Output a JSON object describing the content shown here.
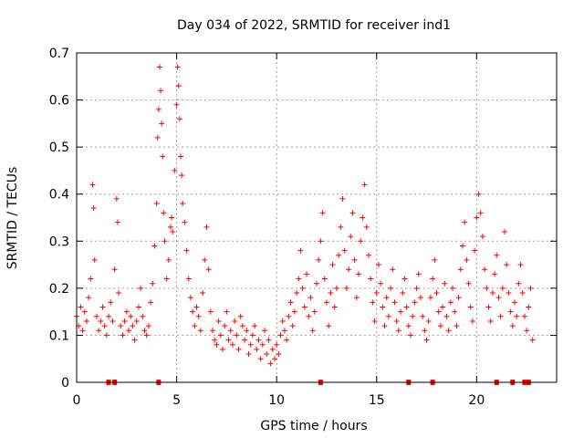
{
  "chart_data": {
    "type": "scatter",
    "title": "Day 034 of 2022, SRMTID for receiver ind1",
    "xlabel": "GPS time / hours",
    "ylabel": "SRMTID / TECUs",
    "xlim": [
      0,
      24
    ],
    "ylim": [
      0,
      0.7
    ],
    "xticks": [
      0,
      5,
      10,
      15,
      20
    ],
    "xtick_labels": [
      "0",
      "5",
      "10",
      "15",
      "20"
    ],
    "yticks": [
      0,
      0.1,
      0.2,
      0.3,
      0.4,
      0.5,
      0.6,
      0.7
    ],
    "ytick_labels": [
      "0",
      "0.1",
      "0.2",
      "0.3",
      "0.4",
      "0.5",
      "0.6",
      "0.7"
    ],
    "grid": true,
    "marker": "+",
    "color": "#ff0000",
    "series": [
      {
        "name": "SRMTID",
        "x": [
          0.0,
          0.1,
          0.2,
          0.3,
          0.4,
          0.5,
          0.6,
          0.7,
          0.8,
          0.85,
          0.9,
          1.0,
          1.1,
          1.2,
          1.3,
          1.4,
          1.5,
          1.6,
          1.7,
          1.8,
          1.9,
          2.0,
          2.05,
          2.1,
          2.2,
          2.3,
          2.4,
          2.5,
          2.6,
          2.7,
          2.8,
          2.9,
          3.0,
          3.1,
          3.2,
          3.3,
          3.4,
          3.5,
          3.6,
          3.7,
          3.8,
          3.9,
          4.0,
          4.05,
          4.1,
          4.15,
          4.2,
          4.25,
          4.3,
          4.35,
          4.4,
          4.5,
          4.6,
          4.7,
          4.75,
          4.8,
          4.9,
          5.0,
          5.05,
          5.1,
          5.15,
          5.2,
          5.25,
          5.3,
          5.4,
          5.5,
          5.6,
          5.7,
          5.8,
          5.9,
          6.0,
          6.1,
          6.2,
          6.3,
          6.4,
          6.5,
          6.6,
          6.7,
          6.8,
          6.9,
          7.0,
          7.1,
          7.2,
          7.3,
          7.4,
          7.5,
          7.6,
          7.7,
          7.8,
          7.9,
          8.0,
          8.1,
          8.2,
          8.3,
          8.4,
          8.5,
          8.6,
          8.7,
          8.8,
          8.9,
          9.0,
          9.1,
          9.2,
          9.3,
          9.4,
          9.5,
          9.6,
          9.7,
          9.8,
          9.9,
          10.0,
          10.1,
          10.2,
          10.3,
          10.4,
          10.5,
          10.6,
          10.7,
          10.8,
          10.9,
          11.0,
          11.1,
          11.2,
          11.3,
          11.4,
          11.5,
          11.6,
          11.7,
          11.8,
          11.9,
          12.0,
          12.1,
          12.2,
          12.3,
          12.4,
          12.5,
          12.6,
          12.7,
          12.8,
          12.9,
          13.0,
          13.1,
          13.2,
          13.3,
          13.4,
          13.5,
          13.6,
          13.7,
          13.8,
          13.9,
          14.0,
          14.1,
          14.2,
          14.3,
          14.4,
          14.5,
          14.6,
          14.7,
          14.8,
          14.9,
          15.0,
          15.1,
          15.2,
          15.3,
          15.4,
          15.5,
          15.6,
          15.7,
          15.8,
          15.9,
          16.0,
          16.1,
          16.2,
          16.3,
          16.4,
          16.5,
          16.6,
          16.7,
          16.8,
          16.9,
          17.0,
          17.1,
          17.2,
          17.3,
          17.4,
          17.5,
          17.6,
          17.7,
          17.8,
          17.9,
          18.0,
          18.1,
          18.2,
          18.3,
          18.4,
          18.5,
          18.6,
          18.7,
          18.8,
          18.9,
          19.0,
          19.1,
          19.2,
          19.3,
          19.4,
          19.5,
          19.6,
          19.7,
          19.8,
          19.9,
          20.0,
          20.1,
          20.2,
          20.3,
          20.4,
          20.5,
          20.6,
          20.7,
          20.8,
          20.9,
          21.0,
          21.1,
          21.2,
          21.3,
          21.4,
          21.5,
          21.6,
          21.7,
          21.8,
          21.9,
          22.0,
          22.1,
          22.2,
          22.3,
          22.4,
          22.5,
          22.6,
          22.7,
          22.8
        ],
        "y": [
          0.14,
          0.12,
          0.16,
          0.11,
          0.15,
          0.13,
          0.18,
          0.22,
          0.42,
          0.37,
          0.26,
          0.14,
          0.11,
          0.13,
          0.16,
          0.12,
          0.1,
          0.14,
          0.17,
          0.13,
          0.24,
          0.39,
          0.34,
          0.19,
          0.12,
          0.1,
          0.13,
          0.15,
          0.11,
          0.14,
          0.12,
          0.09,
          0.13,
          0.16,
          0.2,
          0.14,
          0.11,
          0.1,
          0.12,
          0.17,
          0.21,
          0.29,
          0.38,
          0.52,
          0.58,
          0.67,
          0.62,
          0.55,
          0.48,
          0.36,
          0.3,
          0.22,
          0.26,
          0.33,
          0.35,
          0.32,
          0.45,
          0.59,
          0.67,
          0.63,
          0.56,
          0.48,
          0.44,
          0.38,
          0.34,
          0.28,
          0.22,
          0.18,
          0.15,
          0.12,
          0.16,
          0.14,
          0.11,
          0.19,
          0.26,
          0.33,
          0.24,
          0.15,
          0.11,
          0.09,
          0.08,
          0.13,
          0.1,
          0.07,
          0.12,
          0.15,
          0.09,
          0.11,
          0.08,
          0.13,
          0.1,
          0.07,
          0.14,
          0.12,
          0.09,
          0.11,
          0.06,
          0.08,
          0.1,
          0.12,
          0.07,
          0.09,
          0.05,
          0.08,
          0.11,
          0.06,
          0.09,
          0.04,
          0.07,
          0.05,
          0.08,
          0.06,
          0.1,
          0.13,
          0.11,
          0.09,
          0.14,
          0.17,
          0.12,
          0.15,
          0.19,
          0.22,
          0.28,
          0.2,
          0.16,
          0.23,
          0.14,
          0.18,
          0.11,
          0.15,
          0.21,
          0.26,
          0.3,
          0.36,
          0.22,
          0.17,
          0.12,
          0.19,
          0.25,
          0.16,
          0.2,
          0.27,
          0.33,
          0.39,
          0.28,
          0.2,
          0.24,
          0.31,
          0.36,
          0.26,
          0.18,
          0.23,
          0.3,
          0.35,
          0.42,
          0.33,
          0.27,
          0.22,
          0.17,
          0.13,
          0.19,
          0.25,
          0.21,
          0.16,
          0.12,
          0.18,
          0.14,
          0.2,
          0.24,
          0.17,
          0.13,
          0.11,
          0.15,
          0.19,
          0.22,
          0.16,
          0.12,
          0.1,
          0.14,
          0.17,
          0.2,
          0.23,
          0.18,
          0.14,
          0.11,
          0.09,
          0.13,
          0.18,
          0.22,
          0.26,
          0.19,
          0.15,
          0.12,
          0.16,
          0.21,
          0.14,
          0.11,
          0.17,
          0.2,
          0.15,
          0.12,
          0.18,
          0.24,
          0.29,
          0.34,
          0.26,
          0.21,
          0.16,
          0.13,
          0.28,
          0.35,
          0.4,
          0.36,
          0.31,
          0.24,
          0.2,
          0.16,
          0.13,
          0.19,
          0.23,
          0.27,
          0.18,
          0.14,
          0.2,
          0.32,
          0.25,
          0.19,
          0.15,
          0.12,
          0.17,
          0.14,
          0.21,
          0.25,
          0.19,
          0.14,
          0.11,
          0.16,
          0.2,
          0.09
        ]
      }
    ],
    "zero_markers_x": [
      1.6,
      1.9,
      4.1,
      12.2,
      16.6,
      17.8,
      21.0,
      21.8,
      22.4,
      22.6
    ]
  }
}
